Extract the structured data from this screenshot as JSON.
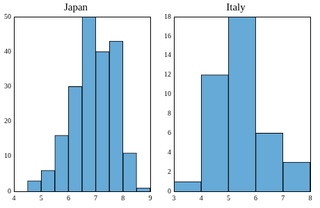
{
  "chart_data": [
    {
      "type": "histogram",
      "title": "Japan",
      "bins": [
        4.5,
        5,
        5.5,
        6,
        6.5,
        7,
        7.5,
        8,
        8.5,
        9
      ],
      "values": [
        3,
        6,
        16,
        30,
        50,
        40,
        43,
        11,
        1
      ],
      "color": "#66aad7",
      "xlim": [
        4,
        9
      ],
      "xticks": [
        4,
        5,
        6,
        7,
        8,
        9
      ],
      "ylim": [
        0,
        50
      ],
      "yticks": [
        0,
        10,
        20,
        30,
        40,
        50
      ],
      "grid": false
    },
    {
      "type": "histogram",
      "title": "Italy",
      "bins": [
        3,
        4,
        5,
        6,
        7,
        8
      ],
      "values": [
        1,
        12,
        18,
        6,
        3
      ],
      "color": "#66aad7",
      "xlim": [
        3,
        8
      ],
      "xticks": [
        3,
        4,
        5,
        6,
        7,
        8
      ],
      "ylim": [
        0,
        18
      ],
      "yticks": [
        0,
        2,
        4,
        6,
        8,
        10,
        12,
        14,
        16,
        18
      ],
      "grid": false
    }
  ]
}
